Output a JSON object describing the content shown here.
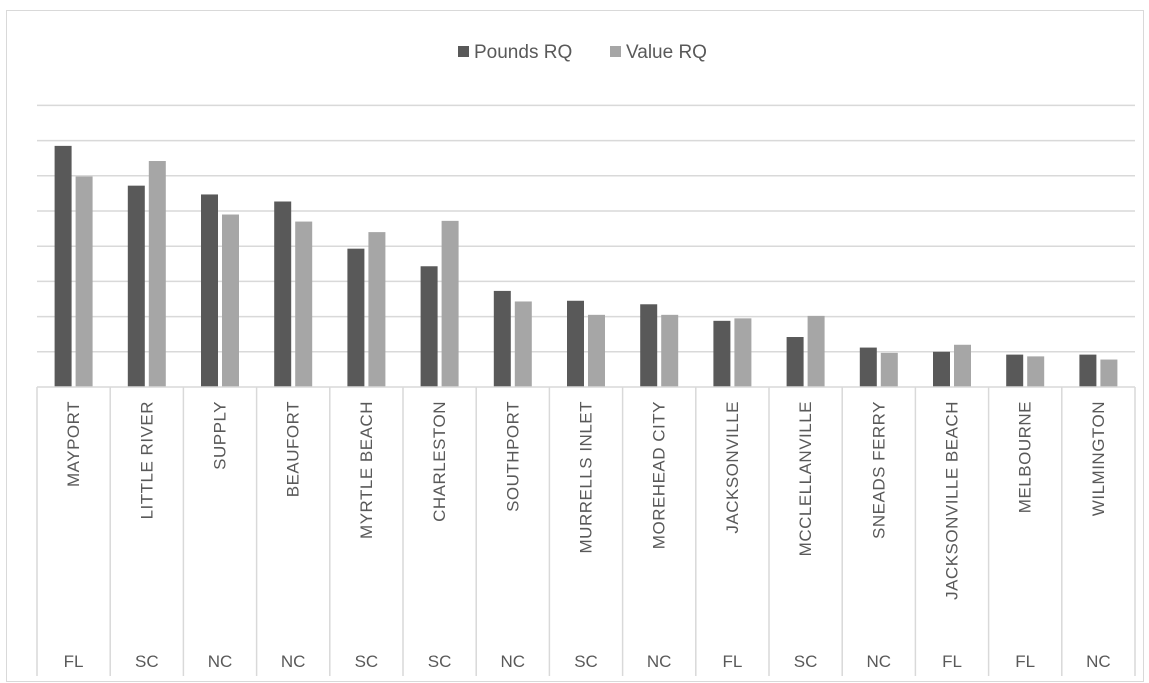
{
  "chart_data": {
    "type": "bar",
    "title": "",
    "xlabel": "",
    "ylabel": "",
    "ylim": [
      0,
      7
    ],
    "gridlines": [
      1,
      2,
      3,
      4,
      5,
      6,
      7,
      8
    ],
    "grid": true,
    "legend_position": "top-center",
    "categories": [
      "MAYPORT",
      "LITTLE RIVER",
      "SUPPLY",
      "BEAUFORT",
      "MYRTLE BEACH",
      "CHARLESTON",
      "SOUTHPORT",
      "MURRELLS INLET",
      "MOREHEAD CITY",
      "JACKSONVILLE",
      "MCCLELLANVILLE",
      "SNEADS FERRY",
      "JACKSONVILLE BEACH",
      "MELBOURNE",
      "WILMINGTON"
    ],
    "states": [
      "FL",
      "SC",
      "NC",
      "NC",
      "SC",
      "SC",
      "NC",
      "SC",
      "NC",
      "FL",
      "SC",
      "NC",
      "FL",
      "FL",
      "NC"
    ],
    "series": [
      {
        "name": "Pounds RQ",
        "color": "#595959",
        "values": [
          6.85,
          5.72,
          5.47,
          5.27,
          3.93,
          3.43,
          2.73,
          2.45,
          2.35,
          1.88,
          1.42,
          1.12,
          1.0,
          0.92,
          0.92
        ]
      },
      {
        "name": "Value RQ",
        "color": "#a6a6a6",
        "values": [
          5.98,
          6.42,
          4.9,
          4.7,
          4.4,
          4.72,
          2.43,
          2.05,
          2.05,
          1.95,
          2.02,
          0.97,
          1.2,
          0.87,
          0.78
        ]
      }
    ]
  }
}
